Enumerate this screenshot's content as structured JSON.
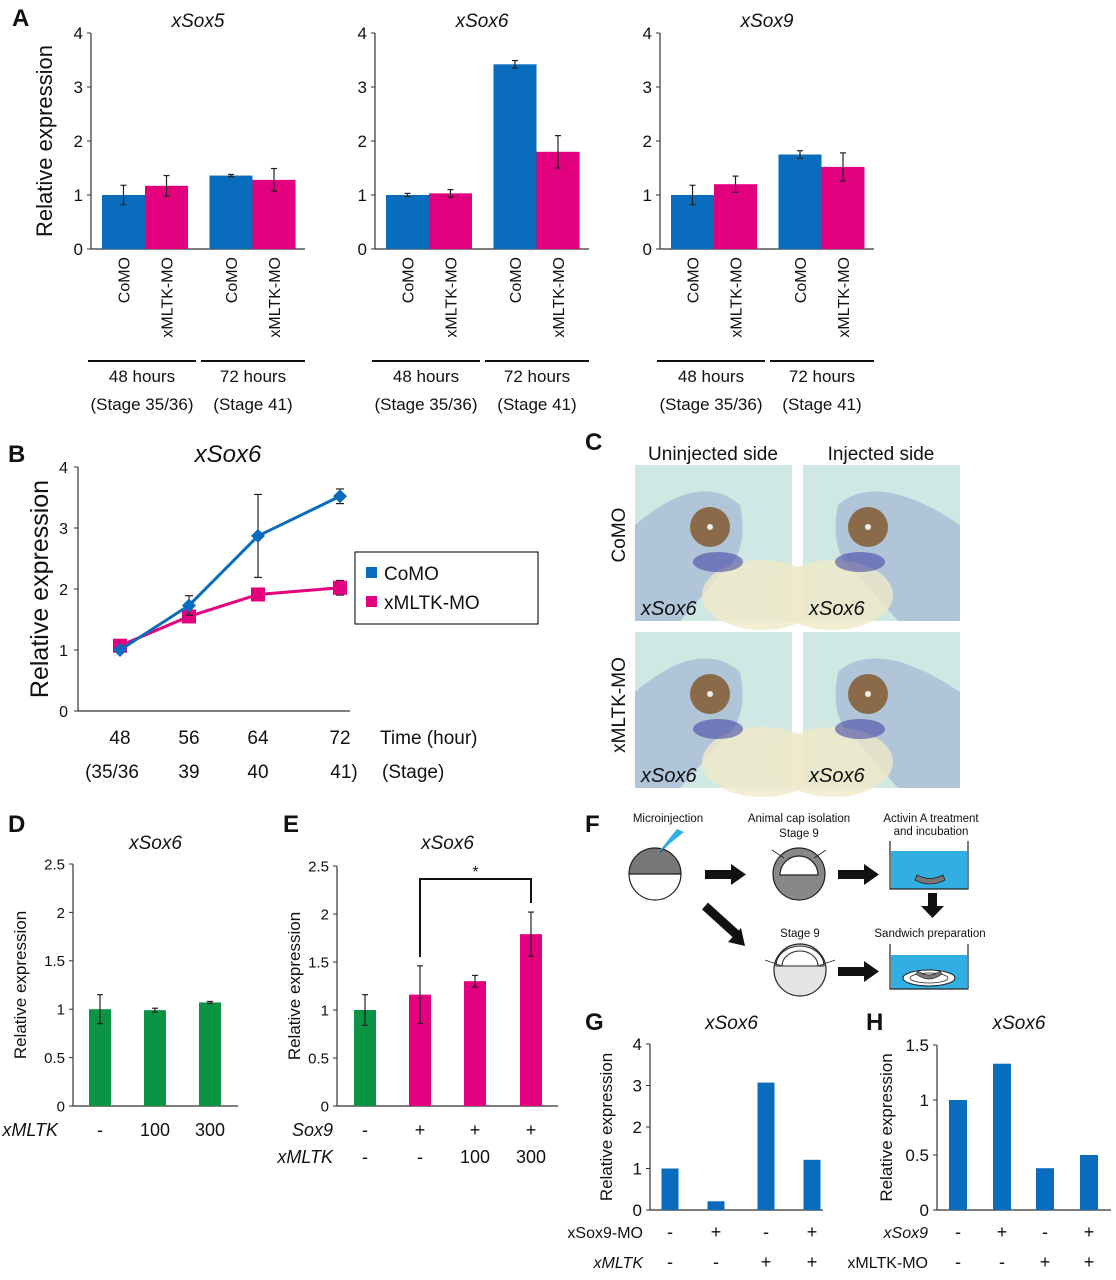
{
  "colors": {
    "blue": "#0a6cbc",
    "magenta": "#e3007f",
    "green": "#0b9444",
    "axis": "#333333",
    "photo_bg": "#cfe8e4",
    "tank_water": "#33aee3",
    "egg_dark": "#777777",
    "egg_light": "#e4e4e4"
  },
  "panels": {
    "A": "A",
    "B": "B",
    "C": "C",
    "D": "D",
    "E": "E",
    "F": "F",
    "G": "G",
    "H": "H"
  },
  "chart_data": [
    {
      "panel": "A",
      "type": "bar",
      "title": "xSox5",
      "ylabel": "Relative expression",
      "ylim": [
        0,
        4
      ],
      "yticks": [
        "0",
        "1",
        "2",
        "3",
        "4"
      ],
      "categories": [
        "CoMO",
        "xMLTK-MO",
        "CoMO",
        "xMLTK-MO"
      ],
      "groups": [
        {
          "label": "48 hours",
          "sublabel": "(Stage 35/36)"
        },
        {
          "label": "72 hours",
          "sublabel": "(Stage 41)"
        }
      ],
      "values": [
        1.0,
        1.17,
        1.36,
        1.28
      ],
      "errors": [
        0.18,
        0.19,
        0.02,
        0.21
      ],
      "bar_colors": [
        "blue",
        "magenta",
        "blue",
        "magenta"
      ]
    },
    {
      "panel": "A",
      "type": "bar",
      "title": "xSox6",
      "ylabel": "",
      "ylim": [
        0,
        4
      ],
      "yticks": [
        "0",
        "1",
        "2",
        "3",
        "4"
      ],
      "categories": [
        "CoMO",
        "xMLTK-MO",
        "CoMO",
        "xMLTK-MO"
      ],
      "groups": [
        {
          "label": "48 hours",
          "sublabel": "(Stage 35/36)"
        },
        {
          "label": "72 hours",
          "sublabel": "(Stage 41)"
        }
      ],
      "values": [
        1.0,
        1.03,
        3.42,
        1.8
      ],
      "errors": [
        0.03,
        0.07,
        0.07,
        0.3
      ],
      "bar_colors": [
        "blue",
        "magenta",
        "blue",
        "magenta"
      ]
    },
    {
      "panel": "A",
      "type": "bar",
      "title": "xSox9",
      "ylabel": "",
      "ylim": [
        0,
        4
      ],
      "yticks": [
        "0",
        "1",
        "2",
        "3",
        "4"
      ],
      "categories": [
        "CoMO",
        "xMLTK-MO",
        "CoMO",
        "xMLTK-MO"
      ],
      "groups": [
        {
          "label": "48 hours",
          "sublabel": "(Stage 35/36)"
        },
        {
          "label": "72 hours",
          "sublabel": "(Stage 41)"
        }
      ],
      "values": [
        1.0,
        1.2,
        1.75,
        1.52
      ],
      "errors": [
        0.18,
        0.15,
        0.07,
        0.26
      ],
      "bar_colors": [
        "blue",
        "magenta",
        "blue",
        "magenta"
      ]
    },
    {
      "panel": "B",
      "type": "line",
      "title": "xSox6",
      "ylabel": "Relative expression",
      "xlabel": "Time (hour)",
      "x2label": "(Stage)",
      "ylim": [
        0,
        4
      ],
      "yticks": [
        "0",
        "1",
        "2",
        "3",
        "4"
      ],
      "x": [
        "48",
        "56",
        "64",
        "72"
      ],
      "x2": [
        "(35/36",
        "39",
        "40",
        "41)"
      ],
      "legend_position": "right",
      "series": [
        {
          "name": "CoMO",
          "color": "blue",
          "marker": "diamond",
          "values": [
            1.0,
            1.73,
            2.87,
            3.52
          ],
          "errors": [
            0.03,
            0.16,
            0.68,
            0.12
          ]
        },
        {
          "name": "xMLTK-MO",
          "color": "magenta",
          "marker": "square",
          "values": [
            1.07,
            1.55,
            1.91,
            2.02
          ],
          "errors": [
            0.05,
            0.05,
            0.05,
            0.12
          ]
        }
      ]
    },
    {
      "panel": "D",
      "type": "bar",
      "title": "xSox6",
      "ylabel": "Relative expression",
      "ylim": [
        0,
        2.5
      ],
      "yticks": [
        "0",
        "0.5",
        "1",
        "1.5",
        "2",
        "2.5"
      ],
      "row_labels": [
        "xMLTK"
      ],
      "rows": [
        [
          "-",
          "100",
          "300"
        ]
      ],
      "values": [
        1.0,
        0.99,
        1.07
      ],
      "errors": [
        0.15,
        0.02,
        0.01
      ],
      "bar_colors": [
        "green",
        "green",
        "green"
      ]
    },
    {
      "panel": "E",
      "type": "bar",
      "title": "xSox6",
      "ylabel": "Relative expression",
      "ylim": [
        0,
        2.5
      ],
      "yticks": [
        "0",
        "0.5",
        "1",
        "1.5",
        "2",
        "2.5"
      ],
      "row_labels": [
        "Sox9",
        "xMLTK"
      ],
      "rows": [
        [
          "-",
          "+",
          "+",
          "+"
        ],
        [
          "-",
          "-",
          "100",
          "300"
        ]
      ],
      "values": [
        1.0,
        1.16,
        1.3,
        1.79
      ],
      "errors": [
        0.16,
        0.3,
        0.06,
        0.23
      ],
      "bar_colors": [
        "green",
        "magenta",
        "magenta",
        "magenta"
      ],
      "annotation": {
        "text": "*",
        "from_bar": 1,
        "to_bar": 3
      }
    },
    {
      "panel": "G",
      "type": "bar",
      "title": "xSox6",
      "ylabel": "Relative expression",
      "ylim": [
        0,
        4
      ],
      "yticks": [
        "0",
        "1",
        "2",
        "3",
        "4"
      ],
      "row_labels": [
        "xSox9-MO",
        "xMLTK"
      ],
      "rows": [
        [
          "-",
          "+",
          "-",
          "+"
        ],
        [
          "-",
          "-",
          "+",
          "+"
        ]
      ],
      "values": [
        1.0,
        0.21,
        3.07,
        1.21
      ],
      "bar_colors": [
        "blue",
        "blue",
        "blue",
        "blue"
      ]
    },
    {
      "panel": "H",
      "type": "bar",
      "title": "xSox6",
      "ylabel": "Relative expression",
      "ylim": [
        0,
        1.5
      ],
      "yticks": [
        "0",
        "0.5",
        "1",
        "1.5"
      ],
      "row_labels": [
        "xSox9",
        "xMLTK-MO"
      ],
      "rows": [
        [
          "-",
          "+",
          "-",
          "+"
        ],
        [
          "-",
          "-",
          "+",
          "+"
        ]
      ],
      "values": [
        1.0,
        1.33,
        0.38,
        0.5
      ],
      "bar_colors": [
        "blue",
        "blue",
        "blue",
        "blue"
      ]
    }
  ],
  "panel_C": {
    "col_headers": [
      "Uninjected side",
      "Injected side"
    ],
    "row_headers": [
      "CoMO",
      "xMLTK-MO"
    ],
    "image_label": "xSox6"
  },
  "panel_F": {
    "microinjection": "Microinjection",
    "animal_cap": "Animal cap isolation",
    "stage9_top": "Stage 9",
    "stage9_bottom": "Stage 9",
    "activin_line1": "Activin A treatment",
    "activin_line2": "and incubation",
    "sandwich": "Sandwich preparation"
  }
}
